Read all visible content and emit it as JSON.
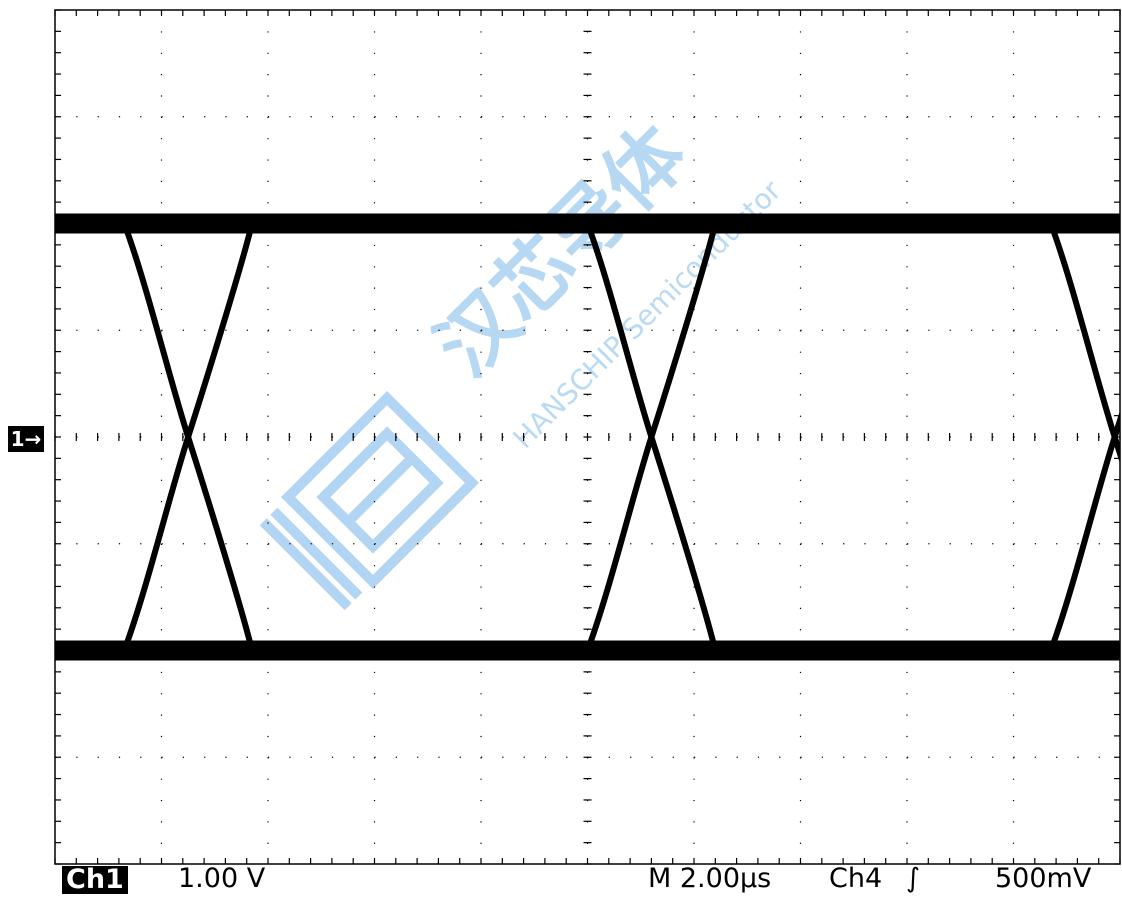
{
  "channel_marker": "1→",
  "status_bar": {
    "channel": "Ch1",
    "channel_scale": "1.00 V",
    "timebase": "M 2.00µs",
    "trigger_source": "Ch4",
    "trigger_slope": "∫",
    "trigger_level": "500mV"
  },
  "watermark": {
    "chinese": "汉芯导体",
    "english": "HANSCHIP Semiconductor",
    "color": "#9ecbf0"
  },
  "colors": {
    "trace": "#000000",
    "grid": "#000000",
    "background": "#ffffff"
  },
  "chart_data": {
    "type": "line",
    "title": "",
    "xlabel": "",
    "ylabel": "",
    "grid": true,
    "x_divisions": 10,
    "y_divisions": 8,
    "x_unit_per_div_us": 2.0,
    "y_unit_per_div_V": 1.0,
    "xlim_us": [
      0,
      20
    ],
    "ylim_V": [
      -4,
      4
    ],
    "series": [
      {
        "levels_V": {
          "high": 2.0,
          "low": -2.0
        },
        "threshold_crossings_us": [
          2.5,
          11.2,
          19.9
        ],
        "transition_width_us": 2.4,
        "values_description_note": ""
      }
    ]
  }
}
